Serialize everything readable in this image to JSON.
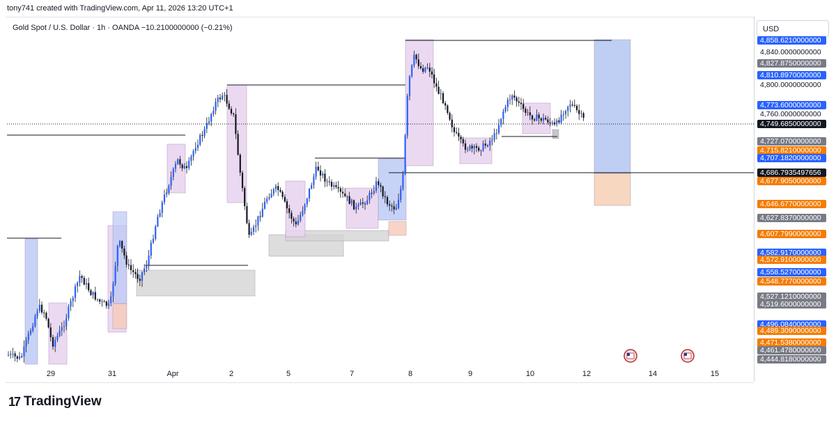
{
  "header": {
    "attribution": "tony741 created with TradingView.com, Apr 11, 2026 13:20 UTC+1"
  },
  "symbol": {
    "line": "Gold Spot / U.S. Dollar · 1h · OANDA  −10.2100000000 (−0.21%)"
  },
  "price_axis": {
    "currency_button": "USD",
    "labels": [
      {
        "text": "4,858.6210000000",
        "bg": "#2962ff",
        "fg": "#ffffff"
      },
      {
        "text": "4,840.0000000000",
        "bg": "#ffffff",
        "fg": "#131722"
      },
      {
        "text": "4,827.8750000000",
        "bg": "#787b86",
        "fg": "#ffffff"
      },
      {
        "text": "4,810.8970000000",
        "bg": "#2962ff",
        "fg": "#ffffff"
      },
      {
        "text": "4,800.0000000000",
        "bg": "#ffffff",
        "fg": "#131722"
      },
      {
        "text": "4,773.6000000000",
        "bg": "#2962ff",
        "fg": "#ffffff"
      },
      {
        "text": "4,760.0000000000",
        "bg": "#ffffff",
        "fg": "#131722"
      },
      {
        "text": "4,749.6850000000",
        "bg": "#131722",
        "fg": "#ffffff"
      },
      {
        "text": "4,727.0700000000",
        "bg": "#787b86",
        "fg": "#ffffff"
      },
      {
        "text": "4,715.8210000000",
        "bg": "#f57c00",
        "fg": "#ffffff"
      },
      {
        "text": "4,707.1820000000",
        "bg": "#2962ff",
        "fg": "#ffffff"
      },
      {
        "text": "4,686.7935497656",
        "bg": "#131722",
        "fg": "#ffffff"
      },
      {
        "text": "4,677.9050000000",
        "bg": "#f57c00",
        "fg": "#ffffff"
      },
      {
        "text": "4,646.6770000000",
        "bg": "#f57c00",
        "fg": "#ffffff"
      },
      {
        "text": "4,627.8370000000",
        "bg": "#787b86",
        "fg": "#ffffff"
      },
      {
        "text": "4,607.7990000000",
        "bg": "#f57c00",
        "fg": "#ffffff"
      },
      {
        "text": "4,582.9170000000",
        "bg": "#2962ff",
        "fg": "#ffffff"
      },
      {
        "text": "4,572.9100000000",
        "bg": "#f57c00",
        "fg": "#ffffff"
      },
      {
        "text": "4,558.5270000000",
        "bg": "#2962ff",
        "fg": "#ffffff"
      },
      {
        "text": "4,548.7770000000",
        "bg": "#f57c00",
        "fg": "#ffffff"
      },
      {
        "text": "4,527.1210000000",
        "bg": "#787b86",
        "fg": "#ffffff"
      },
      {
        "text": "4,519.6000000000",
        "bg": "#787b86",
        "fg": "#ffffff"
      },
      {
        "text": "4,496.0840000000",
        "bg": "#2962ff",
        "fg": "#ffffff"
      },
      {
        "text": "4,489.3090000000",
        "bg": "#f57c00",
        "fg": "#ffffff"
      },
      {
        "text": "4,471.5380000000",
        "bg": "#f57c00",
        "fg": "#ffffff"
      },
      {
        "text": "4,461.4780000000",
        "bg": "#787b86",
        "fg": "#ffffff"
      },
      {
        "text": "4,444.8180000000",
        "bg": "#787b86",
        "fg": "#ffffff"
      }
    ]
  },
  "time_axis": {
    "ticks": [
      "29",
      "31",
      "Apr",
      "2",
      "5",
      "7",
      "8",
      "9",
      "10",
      "12",
      "14",
      "15"
    ]
  },
  "chart_data": {
    "type": "candlestick",
    "symbol": "Gold Spot / U.S. Dollar",
    "interval": "1h",
    "change": "−10.2100000000 (−0.21%)",
    "last_price": 4749.685,
    "ylim": [
      4444,
      4862
    ],
    "colors": {
      "up": "#2962ff",
      "down": "#131722",
      "up_wick": "#131722"
    },
    "events": [
      "us-flag-event-icon",
      "us-flag-event-icon"
    ]
  },
  "brand": {
    "name": "TradingView",
    "mark": "17"
  }
}
